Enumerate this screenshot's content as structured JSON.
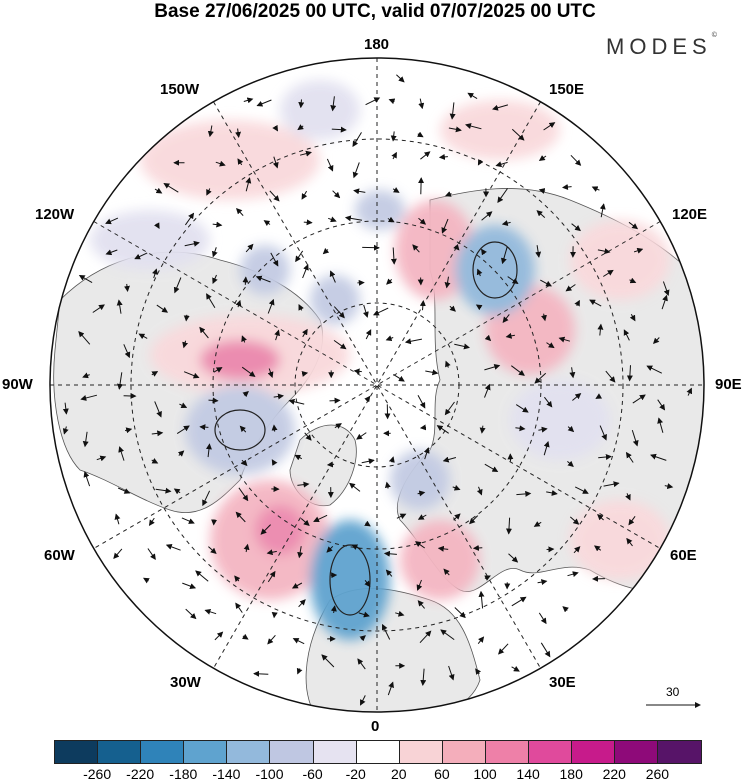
{
  "title": "Base 27/06/2025 00 UTC, valid 07/07/2025 00 UTC",
  "brand": "MODES",
  "brand_mark": "©",
  "longitude_labels": {
    "top": "180",
    "top_left": "150W",
    "top_right": "150E",
    "upper_left": "120W",
    "upper_right": "120E",
    "left": "90W",
    "right": "90E",
    "lower_left": "60W",
    "lower_right": "60E",
    "bottom_left": "30W",
    "bottom_right": "30E",
    "bottom": "0"
  },
  "wind_reference_label": "30",
  "colorbar": {
    "colors": [
      "#0d3b5e",
      "#15608f",
      "#2f83b9",
      "#5fa3cf",
      "#93b9dc",
      "#bfc7e2",
      "#e6e3f1",
      "#ffffff",
      "#f8d3d6",
      "#f4aebb",
      "#ee80a8",
      "#e04a9c",
      "#c71b8b",
      "#8e0a79",
      "#571468"
    ],
    "ticks": [
      "-260",
      "-220",
      "-180",
      "-140",
      "-100",
      "-60",
      "-20",
      "20",
      "60",
      "100",
      "140",
      "180",
      "220",
      "260"
    ]
  },
  "map_colors": {
    "land": "#e9e9e9",
    "positive_light": "#f9d9dc",
    "positive_mid": "#f4b6c2",
    "positive_strong": "#ec88ad",
    "negative_light": "#e2e1f0",
    "negative_mid": "#c3cbe3",
    "negative_strong": "#7da7d3"
  }
}
